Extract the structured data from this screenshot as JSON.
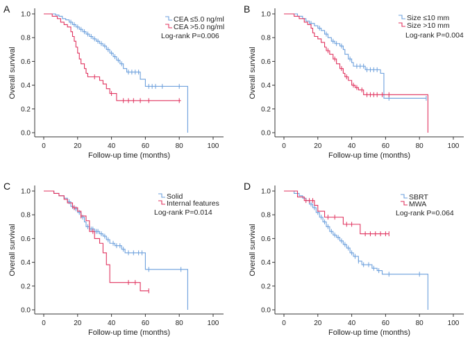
{
  "chart_data": [
    {
      "panel": "A",
      "type": "line",
      "xlabel": "Follow-up time (months)",
      "ylabel": "Overall survival",
      "xticks": [
        "0",
        "20",
        "40",
        "60",
        "80",
        "100"
      ],
      "yticks": [
        "0.0",
        "0.2",
        "0.4",
        "0.6",
        "0.8",
        "1.0"
      ],
      "xlim": [
        0,
        100
      ],
      "ylim": [
        0,
        1
      ],
      "grid": false,
      "annotation": "Log-rank P=0.006",
      "series": [
        {
          "name": "CEA ≤5.0 ng/ml",
          "color": "#6b9fdc",
          "steps": [
            [
              0,
              1
            ],
            [
              7,
              0.99
            ],
            [
              9,
              0.98
            ],
            [
              11,
              0.96
            ],
            [
              13,
              0.95
            ],
            [
              15,
              0.93
            ],
            [
              17,
              0.91
            ],
            [
              19,
              0.89
            ],
            [
              21,
              0.87
            ],
            [
              23,
              0.85
            ],
            [
              25,
              0.83
            ],
            [
              27,
              0.81
            ],
            [
              29,
              0.79
            ],
            [
              31,
              0.77
            ],
            [
              33,
              0.75
            ],
            [
              35,
              0.73
            ],
            [
              37,
              0.7
            ],
            [
              39,
              0.67
            ],
            [
              41,
              0.64
            ],
            [
              43,
              0.61
            ],
            [
              45,
              0.58
            ],
            [
              47,
              0.54
            ],
            [
              49,
              0.51
            ],
            [
              57,
              0.45
            ],
            [
              60,
              0.39
            ],
            [
              85,
              0
            ]
          ],
          "end": 85,
          "censored": [
            16,
            18,
            20,
            22,
            24,
            26,
            28,
            30,
            32,
            34,
            36,
            38,
            40,
            42,
            44,
            46,
            50,
            52,
            54,
            56,
            62,
            64,
            66,
            70,
            80
          ]
        },
        {
          "name": "CEA >5.0 ng/ml",
          "color": "#e0325e",
          "steps": [
            [
              0,
              1
            ],
            [
              5,
              0.98
            ],
            [
              8,
              0.96
            ],
            [
              10,
              0.93
            ],
            [
              12,
              0.91
            ],
            [
              14,
              0.89
            ],
            [
              16,
              0.85
            ],
            [
              17,
              0.81
            ],
            [
              18,
              0.77
            ],
            [
              19,
              0.72
            ],
            [
              20,
              0.67
            ],
            [
              21,
              0.62
            ],
            [
              22,
              0.58
            ],
            [
              24,
              0.54
            ],
            [
              25,
              0.5
            ],
            [
              26,
              0.47
            ],
            [
              33,
              0.44
            ],
            [
              35,
              0.41
            ],
            [
              37,
              0.37
            ],
            [
              39,
              0.33
            ],
            [
              43,
              0.27
            ]
          ],
          "end": 81,
          "censored": [
            30,
            40,
            47,
            50,
            53,
            57,
            62,
            80
          ]
        }
      ]
    },
    {
      "panel": "B",
      "type": "line",
      "xlabel": "Follow-up time (months)",
      "ylabel": "Overall survival",
      "xticks": [
        "0",
        "20",
        "40",
        "60",
        "80",
        "100"
      ],
      "yticks": [
        "0.0",
        "0.2",
        "0.4",
        "0.6",
        "0.8",
        "1.0"
      ],
      "xlim": [
        0,
        100
      ],
      "ylim": [
        0,
        1
      ],
      "grid": false,
      "annotation": "Log-rank P=0.004",
      "series": [
        {
          "name": "Size ≤10 mm",
          "color": "#6b9fdc",
          "steps": [
            [
              0,
              1
            ],
            [
              8,
              0.98
            ],
            [
              11,
              0.96
            ],
            [
              13,
              0.94
            ],
            [
              15,
              0.92
            ],
            [
              18,
              0.9
            ],
            [
              20,
              0.88
            ],
            [
              22,
              0.86
            ],
            [
              24,
              0.83
            ],
            [
              26,
              0.8
            ],
            [
              28,
              0.77
            ],
            [
              30,
              0.75
            ],
            [
              33,
              0.73
            ],
            [
              35,
              0.7
            ],
            [
              36,
              0.66
            ],
            [
              38,
              0.62
            ],
            [
              40,
              0.59
            ],
            [
              41,
              0.56
            ],
            [
              48,
              0.53
            ],
            [
              57,
              0.5
            ],
            [
              59,
              0.29
            ]
          ],
          "end": 84,
          "censored": [
            16,
            21,
            25,
            29,
            31,
            34,
            39,
            43,
            45,
            47,
            49,
            51,
            53,
            55,
            62,
            84
          ]
        },
        {
          "name": "Size >10 mm",
          "color": "#e0325e",
          "steps": [
            [
              0,
              1
            ],
            [
              6,
              0.98
            ],
            [
              9,
              0.96
            ],
            [
              12,
              0.93
            ],
            [
              14,
              0.91
            ],
            [
              16,
              0.88
            ],
            [
              17,
              0.84
            ],
            [
              18,
              0.81
            ],
            [
              20,
              0.79
            ],
            [
              22,
              0.76
            ],
            [
              24,
              0.72
            ],
            [
              25,
              0.69
            ],
            [
              27,
              0.66
            ],
            [
              29,
              0.62
            ],
            [
              31,
              0.58
            ],
            [
              33,
              0.54
            ],
            [
              35,
              0.5
            ],
            [
              36,
              0.47
            ],
            [
              38,
              0.44
            ],
            [
              40,
              0.4
            ],
            [
              42,
              0.38
            ],
            [
              44,
              0.36
            ],
            [
              47,
              0.32
            ],
            [
              85,
              0
            ]
          ],
          "end": 85,
          "censored": [
            26,
            30,
            34,
            37,
            41,
            43,
            46,
            49,
            51,
            53,
            55,
            58,
            62
          ]
        }
      ]
    },
    {
      "panel": "C",
      "type": "line",
      "xlabel": "Follow-up time (months)",
      "ylabel": "Overall survival",
      "xticks": [
        "0",
        "20",
        "40",
        "60",
        "80",
        "100"
      ],
      "yticks": [
        "0.0",
        "0.2",
        "0.4",
        "0.6",
        "0.8",
        "1.0"
      ],
      "xlim": [
        0,
        100
      ],
      "ylim": [
        0,
        1
      ],
      "grid": false,
      "annotation": "Log-rank P=0.014",
      "series": [
        {
          "name": "Solid",
          "color": "#6b9fdc",
          "steps": [
            [
              0,
              1
            ],
            [
              6,
              0.98
            ],
            [
              9,
              0.96
            ],
            [
              12,
              0.94
            ],
            [
              14,
              0.91
            ],
            [
              16,
              0.87
            ],
            [
              18,
              0.85
            ],
            [
              20,
              0.82
            ],
            [
              22,
              0.78
            ],
            [
              24,
              0.74
            ],
            [
              25,
              0.7
            ],
            [
              27,
              0.68
            ],
            [
              30,
              0.66
            ],
            [
              33,
              0.64
            ],
            [
              35,
              0.62
            ],
            [
              37,
              0.59
            ],
            [
              39,
              0.56
            ],
            [
              42,
              0.54
            ],
            [
              46,
              0.51
            ],
            [
              48,
              0.48
            ],
            [
              60,
              0.34
            ],
            [
              85,
              0
            ]
          ],
          "end": 85,
          "censored": [
            15,
            17,
            19,
            21,
            23,
            26,
            28,
            29,
            31,
            32,
            34,
            36,
            38,
            41,
            43,
            45,
            47,
            50,
            53,
            56,
            58,
            62,
            81
          ]
        },
        {
          "name": "Internal features",
          "color": "#e0325e",
          "steps": [
            [
              0,
              1
            ],
            [
              6,
              0.98
            ],
            [
              9,
              0.96
            ],
            [
              12,
              0.93
            ],
            [
              14,
              0.9
            ],
            [
              17,
              0.86
            ],
            [
              20,
              0.83
            ],
            [
              22,
              0.79
            ],
            [
              25,
              0.75
            ],
            [
              27,
              0.66
            ],
            [
              30,
              0.6
            ],
            [
              33,
              0.56
            ],
            [
              35,
              0.48
            ],
            [
              37,
              0.38
            ],
            [
              39,
              0.23
            ],
            [
              57,
              0.16
            ]
          ],
          "end": 62,
          "censored": [
            18,
            22,
            29,
            50,
            54,
            62
          ]
        }
      ]
    },
    {
      "panel": "D",
      "type": "line",
      "xlabel": "Follow-up time (months)",
      "ylabel": "Overall survival",
      "xticks": [
        "0",
        "20",
        "40",
        "60",
        "80",
        "100"
      ],
      "yticks": [
        "0.0",
        "0.2",
        "0.4",
        "0.6",
        "0.8",
        "1.0"
      ],
      "xlim": [
        0,
        100
      ],
      "ylim": [
        0,
        1
      ],
      "grid": false,
      "annotation": "Log-rank P=0.064",
      "series": [
        {
          "name": "SBRT",
          "color": "#6b9fdc",
          "steps": [
            [
              0,
              1
            ],
            [
              6,
              0.98
            ],
            [
              9,
              0.96
            ],
            [
              11,
              0.94
            ],
            [
              13,
              0.92
            ],
            [
              15,
              0.89
            ],
            [
              17,
              0.86
            ],
            [
              19,
              0.82
            ],
            [
              21,
              0.78
            ],
            [
              23,
              0.74
            ],
            [
              25,
              0.7
            ],
            [
              27,
              0.66
            ],
            [
              29,
              0.63
            ],
            [
              31,
              0.61
            ],
            [
              33,
              0.58
            ],
            [
              35,
              0.55
            ],
            [
              37,
              0.52
            ],
            [
              39,
              0.48
            ],
            [
              41,
              0.45
            ],
            [
              44,
              0.41
            ],
            [
              46,
              0.38
            ],
            [
              52,
              0.35
            ],
            [
              55,
              0.33
            ],
            [
              58,
              0.3
            ],
            [
              85,
              0
            ]
          ],
          "end": 85,
          "censored": [
            16,
            18,
            20,
            22,
            24,
            26,
            28,
            30,
            32,
            34,
            36,
            38,
            40,
            42,
            44,
            47,
            50,
            53,
            56,
            62,
            80
          ]
        },
        {
          "name": "MWA",
          "color": "#e0325e",
          "steps": [
            [
              0,
              1
            ],
            [
              8,
              0.95
            ],
            [
              12,
              0.92
            ],
            [
              18,
              0.88
            ],
            [
              20,
              0.83
            ],
            [
              24,
              0.78
            ],
            [
              35,
              0.72
            ],
            [
              45,
              0.64
            ]
          ],
          "end": 62,
          "censored": [
            13,
            15,
            17,
            26,
            30,
            37,
            40,
            48,
            51,
            54,
            57,
            60,
            62
          ]
        }
      ]
    }
  ]
}
